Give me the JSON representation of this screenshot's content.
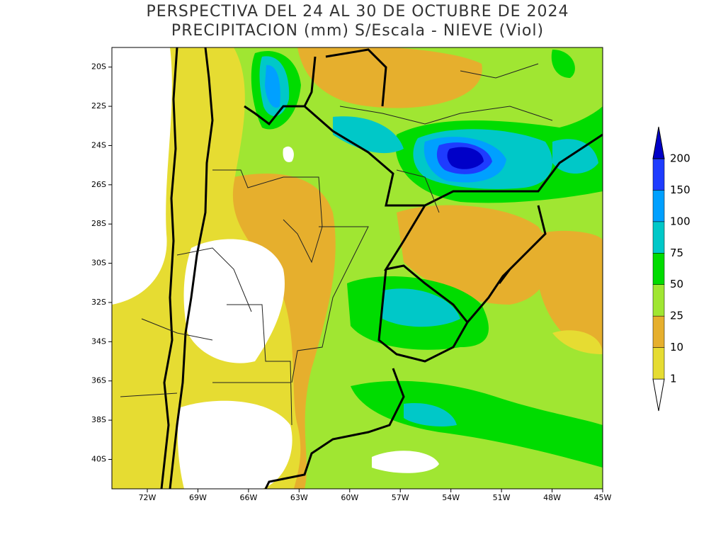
{
  "chart_data": {
    "type": "contour-map",
    "title": "PERSPECTIVA DEL 24 AL 30 DE OCTUBRE DE 2024",
    "subtitle": "PRECIPITACION (mm) S/Escala - NIEVE (Viol)",
    "xlim": [
      -74.1,
      -45
    ],
    "ylim": [
      -41.5,
      -19
    ],
    "xticks": [
      {
        "value": -72,
        "label": "72W"
      },
      {
        "value": -69,
        "label": "69W"
      },
      {
        "value": -66,
        "label": "66W"
      },
      {
        "value": -63,
        "label": "63W"
      },
      {
        "value": -60,
        "label": "60W"
      },
      {
        "value": -57,
        "label": "57W"
      },
      {
        "value": -54,
        "label": "54W"
      },
      {
        "value": -51,
        "label": "51W"
      },
      {
        "value": -48,
        "label": "48W"
      },
      {
        "value": -45,
        "label": "45W"
      }
    ],
    "yticks": [
      {
        "value": -20,
        "label": "20S"
      },
      {
        "value": -22,
        "label": "22S"
      },
      {
        "value": -24,
        "label": "24S"
      },
      {
        "value": -26,
        "label": "26S"
      },
      {
        "value": -28,
        "label": "28S"
      },
      {
        "value": -30,
        "label": "30S"
      },
      {
        "value": -32,
        "label": "32S"
      },
      {
        "value": -34,
        "label": "34S"
      },
      {
        "value": -36,
        "label": "36S"
      },
      {
        "value": -38,
        "label": "38S"
      },
      {
        "value": -40,
        "label": "40S"
      }
    ],
    "colorbar": {
      "levels": [
        1,
        10,
        25,
        50,
        75,
        100,
        150,
        200
      ],
      "colors": [
        "#ffffff",
        "#e6dc32",
        "#e6af2d",
        "#a0e632",
        "#00dc00",
        "#00c8c8",
        "#00a0ff",
        "#1e3cff",
        "#0000c8"
      ]
    }
  }
}
